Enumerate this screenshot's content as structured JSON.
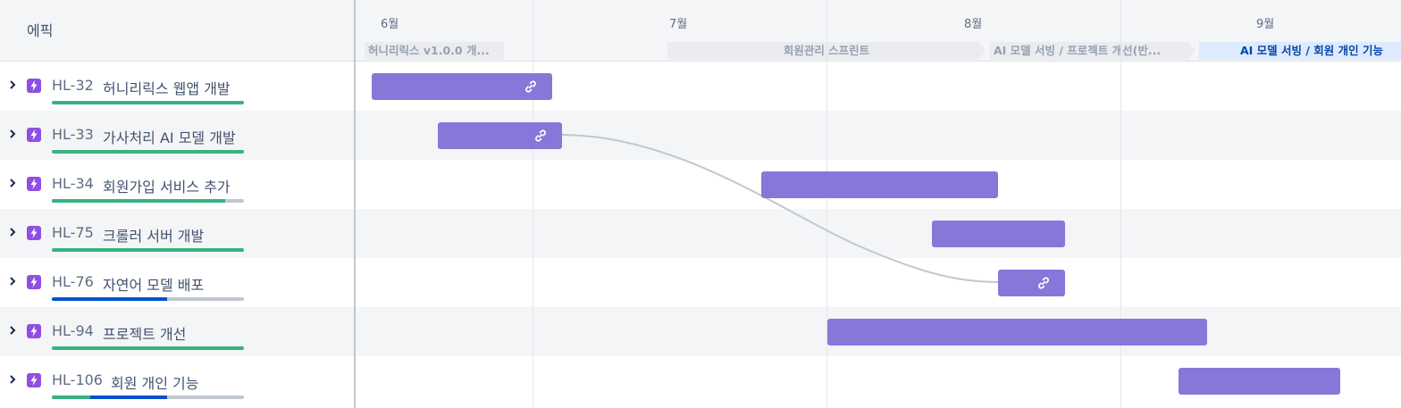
{
  "header": {
    "column_title": "에픽",
    "months": [
      "6월",
      "7월",
      "8월",
      "9월"
    ],
    "sprints": [
      {
        "label": "허니리릭스 v1.0.0 개...",
        "state": "closed"
      },
      {
        "label": "회원관리 스프린트",
        "state": "closed"
      },
      {
        "label": "AI 모델 서빙 / 프로젝트 개선(반...",
        "state": "closed"
      },
      {
        "label": "AI 모델 서빙 / 회원 개인 기능",
        "state": "active"
      }
    ]
  },
  "epics": [
    {
      "key": "HL-32",
      "name": "허니리릭스 웹앱 개발",
      "progress": {
        "done": 1.0,
        "in_progress": 0.0
      },
      "has_link": true
    },
    {
      "key": "HL-33",
      "name": "가사처리 AI 모델 개발",
      "progress": {
        "done": 1.0,
        "in_progress": 0.0
      },
      "has_link": true
    },
    {
      "key": "HL-34",
      "name": "회원가입 서비스 추가",
      "progress": {
        "done": 0.9,
        "in_progress": 0.0
      },
      "has_link": false
    },
    {
      "key": "HL-75",
      "name": "크롤러 서버 개발",
      "progress": {
        "done": 1.0,
        "in_progress": 0.0
      },
      "has_link": false
    },
    {
      "key": "HL-76",
      "name": "자연어 모델 배포",
      "progress": {
        "done": 0.0,
        "in_progress": 0.6
      },
      "has_link": true
    },
    {
      "key": "HL-94",
      "name": "프로젝트 개선",
      "progress": {
        "done": 1.0,
        "in_progress": 0.0
      },
      "has_link": false
    },
    {
      "key": "HL-106",
      "name": "회원 개인 기능",
      "progress": {
        "done": 0.2,
        "in_progress": 0.4
      },
      "has_link": false
    }
  ],
  "icons": {
    "expand": "chevron-right-icon",
    "epic": "epic-lightning-icon",
    "dependency": "link-icon"
  },
  "colors": {
    "bar": "#8777d9",
    "epic_icon": "#904ee2",
    "progress_done": "#36b37e",
    "progress_in_progress": "#0052cc",
    "progress_todo": "#c1c7d0",
    "active_sprint_bg": "#deebff",
    "active_sprint_text": "#0747a6"
  }
}
